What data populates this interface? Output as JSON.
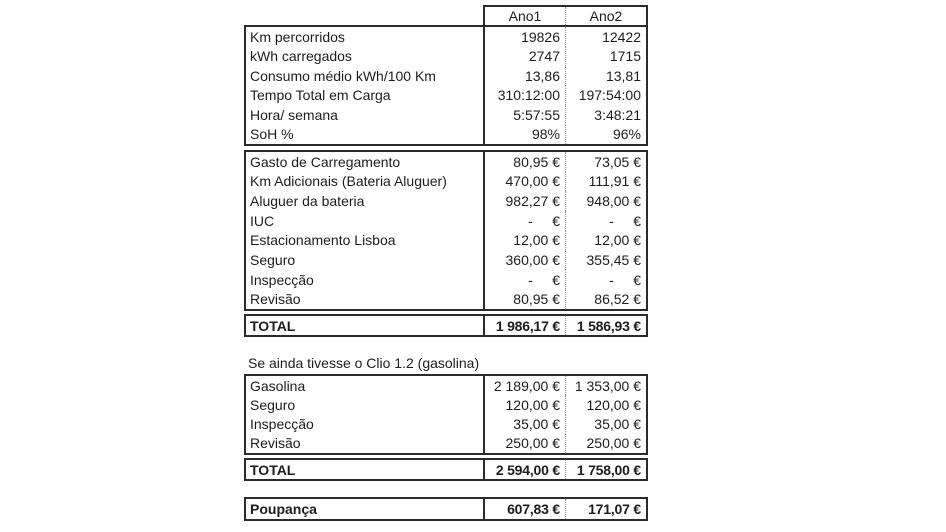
{
  "header": {
    "ano1": "Ano1",
    "ano2": "Ano2"
  },
  "stats": {
    "rows": [
      {
        "label": "Km percorridos",
        "ano1": "19826",
        "ano2": "12422"
      },
      {
        "label": "kWh carregados",
        "ano1": "2747",
        "ano2": "1715"
      },
      {
        "label": "Consumo médio kWh/100 Km",
        "ano1": "13,86",
        "ano2": "13,81"
      },
      {
        "label": "Tempo Total em Carga",
        "ano1": "310:12:00",
        "ano2": "197:54:00"
      },
      {
        "label": "Hora/ semana",
        "ano1": "5:57:55",
        "ano2": "3:48:21"
      },
      {
        "label": "SoH %",
        "ano1": "98%",
        "ano2": "96%"
      }
    ]
  },
  "ev_costs": {
    "rows": [
      {
        "label": "Gasto de Carregamento",
        "ano1": "80,95 €",
        "ano2": "73,05 €"
      },
      {
        "label": "Km Adicionais (Bateria Aluguer)",
        "ano1": "470,00 €",
        "ano2": "111,91 €"
      },
      {
        "label": "Aluguer da bateria",
        "ano1": "982,27 €",
        "ano2": "948,00 €"
      },
      {
        "label": "IUC",
        "ano1": "-     €",
        "ano2": "-     €"
      },
      {
        "label": "Estacionamento Lisboa",
        "ano1": "12,00 €",
        "ano2": "12,00 €"
      },
      {
        "label": "Seguro",
        "ano1": "360,00 €",
        "ano2": "355,45 €"
      },
      {
        "label": "Inspecção",
        "ano1": "-     €",
        "ano2": "-     €"
      },
      {
        "label": "Revisão",
        "ano1": "80,95 €",
        "ano2": "86,52 €"
      }
    ],
    "total": {
      "label": "TOTAL",
      "ano1": "1 986,17 €",
      "ano2": "1 586,93 €"
    }
  },
  "clio": {
    "note": "Se ainda tivesse o Clio 1.2 (gasolina)",
    "rows": [
      {
        "label": "Gasolina",
        "ano1": "2 189,00 €",
        "ano2": "1 353,00 €"
      },
      {
        "label": "Seguro",
        "ano1": "120,00 €",
        "ano2": "120,00 €"
      },
      {
        "label": "Inspecção",
        "ano1": "35,00 €",
        "ano2": "35,00 €"
      },
      {
        "label": "Revisão",
        "ano1": "250,00 €",
        "ano2": "250,00 €"
      }
    ],
    "total": {
      "label": "TOTAL",
      "ano1": "2 594,00 €",
      "ano2": "1 758,00 €"
    }
  },
  "savings": {
    "label": "Poupança",
    "ano1": "607,83 €",
    "ano2": "171,07 €"
  }
}
